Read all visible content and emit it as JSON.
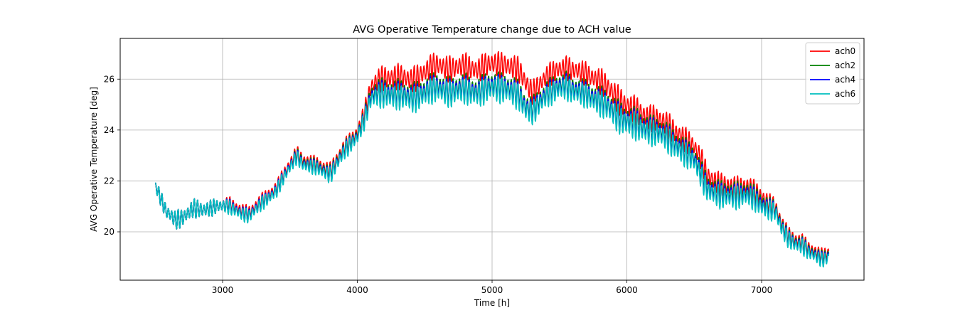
{
  "chart_data": {
    "type": "line",
    "title": "AVG Operative Temperature change due to ACH value",
    "xlabel": "Time [h]",
    "ylabel": "AVG Operative Temperature [deg]",
    "xlim": [
      2240,
      7760
    ],
    "ylim": [
      18.1,
      27.6
    ],
    "xticks": [
      3000,
      4000,
      5000,
      6000,
      7000
    ],
    "yticks": [
      20,
      22,
      24,
      26
    ],
    "grid": true,
    "legend_position": "top-right",
    "x_range": [
      2500,
      7500
    ],
    "daily_period_h": 24,
    "trend_x": [
      2500,
      2520,
      2580,
      2650,
      2700,
      2780,
      2850,
      2900,
      2950,
      3000,
      3050,
      3100,
      3150,
      3200,
      3300,
      3400,
      3500,
      3550,
      3600,
      3700,
      3800,
      3900,
      4000,
      4050,
      4100,
      4150,
      4200,
      4300,
      4400,
      4500,
      4600,
      4700,
      4800,
      4900,
      5000,
      5100,
      5200,
      5250,
      5300,
      5400,
      5500,
      5550,
      5600,
      5700,
      5800,
      5900,
      6000,
      6100,
      6200,
      6300,
      6400,
      6500,
      6550,
      6600,
      6700,
      6800,
      6900,
      7000,
      7100,
      7150,
      7200,
      7250,
      7300,
      7350,
      7400,
      7450,
      7500
    ],
    "series": [
      {
        "name": "ach0",
        "color": "#ff0000",
        "amplitude": [
          0.25,
          0.3,
          0.35,
          0.4,
          0.4,
          0.4,
          0.4,
          0.35,
          0.35,
          0.3,
          0.3,
          0.3,
          0.3,
          0.3,
          0.3,
          0.3,
          0.3,
          0.3,
          0.3,
          0.3,
          0.35,
          0.35,
          0.35,
          0.4,
          0.45,
          0.5,
          0.55,
          0.55,
          0.55,
          0.55,
          0.55,
          0.55,
          0.55,
          0.55,
          0.55,
          0.55,
          0.55,
          0.55,
          0.5,
          0.5,
          0.5,
          0.5,
          0.5,
          0.5,
          0.55,
          0.6,
          0.6,
          0.6,
          0.55,
          0.55,
          0.55,
          0.5,
          0.5,
          0.5,
          0.5,
          0.5,
          0.45,
          0.45,
          0.4,
          0.4,
          0.35,
          0.35,
          0.35,
          0.3,
          0.3,
          0.3,
          0.3
        ],
        "trend_y": [
          21.8,
          21.6,
          20.8,
          20.5,
          20.6,
          20.9,
          20.8,
          20.9,
          21.0,
          21.0,
          21.1,
          21.0,
          20.9,
          20.8,
          21.3,
          21.7,
          22.6,
          23.1,
          22.8,
          22.7,
          22.5,
          23.3,
          23.9,
          24.6,
          25.6,
          25.9,
          26.1,
          26.1,
          26.0,
          26.2,
          26.5,
          26.4,
          26.6,
          26.5,
          26.6,
          26.5,
          26.2,
          25.8,
          25.5,
          26.1,
          26.5,
          26.5,
          26.3,
          26.2,
          25.9,
          25.5,
          25.0,
          24.6,
          24.4,
          24.1,
          23.8,
          23.4,
          23.0,
          22.3,
          21.8,
          21.7,
          21.7,
          21.4,
          21.0,
          20.3,
          19.9,
          19.7,
          19.6,
          19.3,
          19.2,
          19.1,
          19.2
        ]
      },
      {
        "name": "ach2",
        "color": "#008000",
        "amplitude": [
          0.25,
          0.3,
          0.35,
          0.4,
          0.4,
          0.4,
          0.4,
          0.35,
          0.35,
          0.3,
          0.3,
          0.3,
          0.3,
          0.3,
          0.3,
          0.3,
          0.3,
          0.3,
          0.3,
          0.3,
          0.35,
          0.35,
          0.35,
          0.4,
          0.45,
          0.5,
          0.55,
          0.55,
          0.55,
          0.55,
          0.55,
          0.55,
          0.55,
          0.55,
          0.55,
          0.55,
          0.55,
          0.55,
          0.5,
          0.5,
          0.5,
          0.5,
          0.5,
          0.5,
          0.55,
          0.6,
          0.6,
          0.6,
          0.55,
          0.55,
          0.55,
          0.5,
          0.5,
          0.5,
          0.5,
          0.5,
          0.45,
          0.45,
          0.4,
          0.4,
          0.35,
          0.35,
          0.35,
          0.3,
          0.3,
          0.3,
          0.3
        ],
        "trend_y": [
          21.8,
          21.6,
          20.8,
          20.5,
          20.6,
          20.9,
          20.8,
          20.9,
          21.0,
          21.0,
          21.0,
          20.9,
          20.8,
          20.7,
          21.2,
          21.6,
          22.5,
          23.0,
          22.7,
          22.6,
          22.4,
          23.2,
          23.8,
          24.4,
          25.3,
          25.5,
          25.6,
          25.5,
          25.4,
          25.5,
          25.7,
          25.6,
          25.8,
          25.7,
          25.8,
          25.7,
          25.3,
          24.9,
          24.9,
          25.5,
          25.9,
          25.9,
          25.6,
          25.5,
          25.2,
          24.9,
          24.5,
          24.2,
          24.0,
          23.7,
          23.4,
          23.0,
          22.5,
          21.9,
          21.5,
          21.5,
          21.5,
          21.2,
          20.9,
          20.2,
          19.8,
          19.6,
          19.5,
          19.2,
          19.1,
          19.0,
          19.1
        ]
      },
      {
        "name": "ach4",
        "color": "#0000ff",
        "amplitude": [
          0.25,
          0.3,
          0.35,
          0.4,
          0.4,
          0.4,
          0.4,
          0.35,
          0.35,
          0.3,
          0.3,
          0.3,
          0.3,
          0.3,
          0.3,
          0.3,
          0.3,
          0.3,
          0.3,
          0.3,
          0.35,
          0.35,
          0.35,
          0.4,
          0.45,
          0.5,
          0.55,
          0.55,
          0.55,
          0.55,
          0.55,
          0.55,
          0.55,
          0.55,
          0.55,
          0.55,
          0.55,
          0.55,
          0.5,
          0.5,
          0.5,
          0.5,
          0.5,
          0.5,
          0.55,
          0.6,
          0.6,
          0.6,
          0.55,
          0.55,
          0.55,
          0.5,
          0.5,
          0.5,
          0.5,
          0.5,
          0.45,
          0.45,
          0.4,
          0.4,
          0.35,
          0.35,
          0.35,
          0.3,
          0.3,
          0.3,
          0.3
        ],
        "trend_y": [
          21.8,
          21.6,
          20.8,
          20.5,
          20.6,
          20.9,
          20.8,
          20.9,
          21.0,
          21.0,
          21.0,
          20.9,
          20.8,
          20.7,
          21.2,
          21.6,
          22.5,
          22.95,
          22.65,
          22.55,
          22.35,
          23.15,
          23.75,
          24.35,
          25.2,
          25.4,
          25.5,
          25.4,
          25.3,
          25.4,
          25.6,
          25.5,
          25.7,
          25.6,
          25.7,
          25.6,
          25.2,
          24.8,
          24.8,
          25.4,
          25.8,
          25.8,
          25.5,
          25.4,
          25.1,
          24.8,
          24.4,
          24.1,
          23.9,
          23.6,
          23.3,
          22.9,
          22.4,
          21.8,
          21.4,
          21.4,
          21.4,
          21.1,
          20.85,
          20.15,
          19.75,
          19.55,
          19.45,
          19.15,
          19.05,
          18.95,
          19.05
        ]
      },
      {
        "name": "ach6",
        "color": "#00bfbf",
        "amplitude": [
          0.25,
          0.3,
          0.35,
          0.4,
          0.4,
          0.4,
          0.4,
          0.35,
          0.35,
          0.3,
          0.3,
          0.3,
          0.3,
          0.3,
          0.3,
          0.3,
          0.3,
          0.3,
          0.3,
          0.3,
          0.35,
          0.35,
          0.35,
          0.4,
          0.45,
          0.5,
          0.55,
          0.55,
          0.55,
          0.55,
          0.55,
          0.55,
          0.55,
          0.55,
          0.55,
          0.55,
          0.55,
          0.55,
          0.5,
          0.5,
          0.5,
          0.5,
          0.5,
          0.5,
          0.55,
          0.6,
          0.6,
          0.6,
          0.55,
          0.55,
          0.55,
          0.5,
          0.5,
          0.5,
          0.5,
          0.5,
          0.45,
          0.45,
          0.4,
          0.4,
          0.35,
          0.35,
          0.35,
          0.3,
          0.3,
          0.3,
          0.3
        ],
        "trend_y": [
          21.8,
          21.6,
          20.8,
          20.5,
          20.6,
          20.9,
          20.8,
          20.9,
          21.0,
          21.0,
          20.95,
          20.85,
          20.75,
          20.65,
          21.15,
          21.55,
          22.45,
          22.9,
          22.6,
          22.5,
          22.3,
          23.1,
          23.7,
          24.3,
          25.1,
          25.3,
          25.4,
          25.3,
          25.2,
          25.3,
          25.5,
          25.4,
          25.6,
          25.5,
          25.6,
          25.5,
          25.1,
          24.7,
          24.7,
          25.3,
          25.7,
          25.7,
          25.4,
          25.3,
          25.0,
          24.7,
          24.3,
          24.0,
          23.8,
          23.5,
          23.2,
          22.8,
          22.3,
          21.7,
          21.3,
          21.3,
          21.3,
          21.0,
          20.8,
          20.1,
          19.7,
          19.5,
          19.4,
          19.1,
          19.0,
          18.9,
          19.0
        ]
      }
    ]
  }
}
